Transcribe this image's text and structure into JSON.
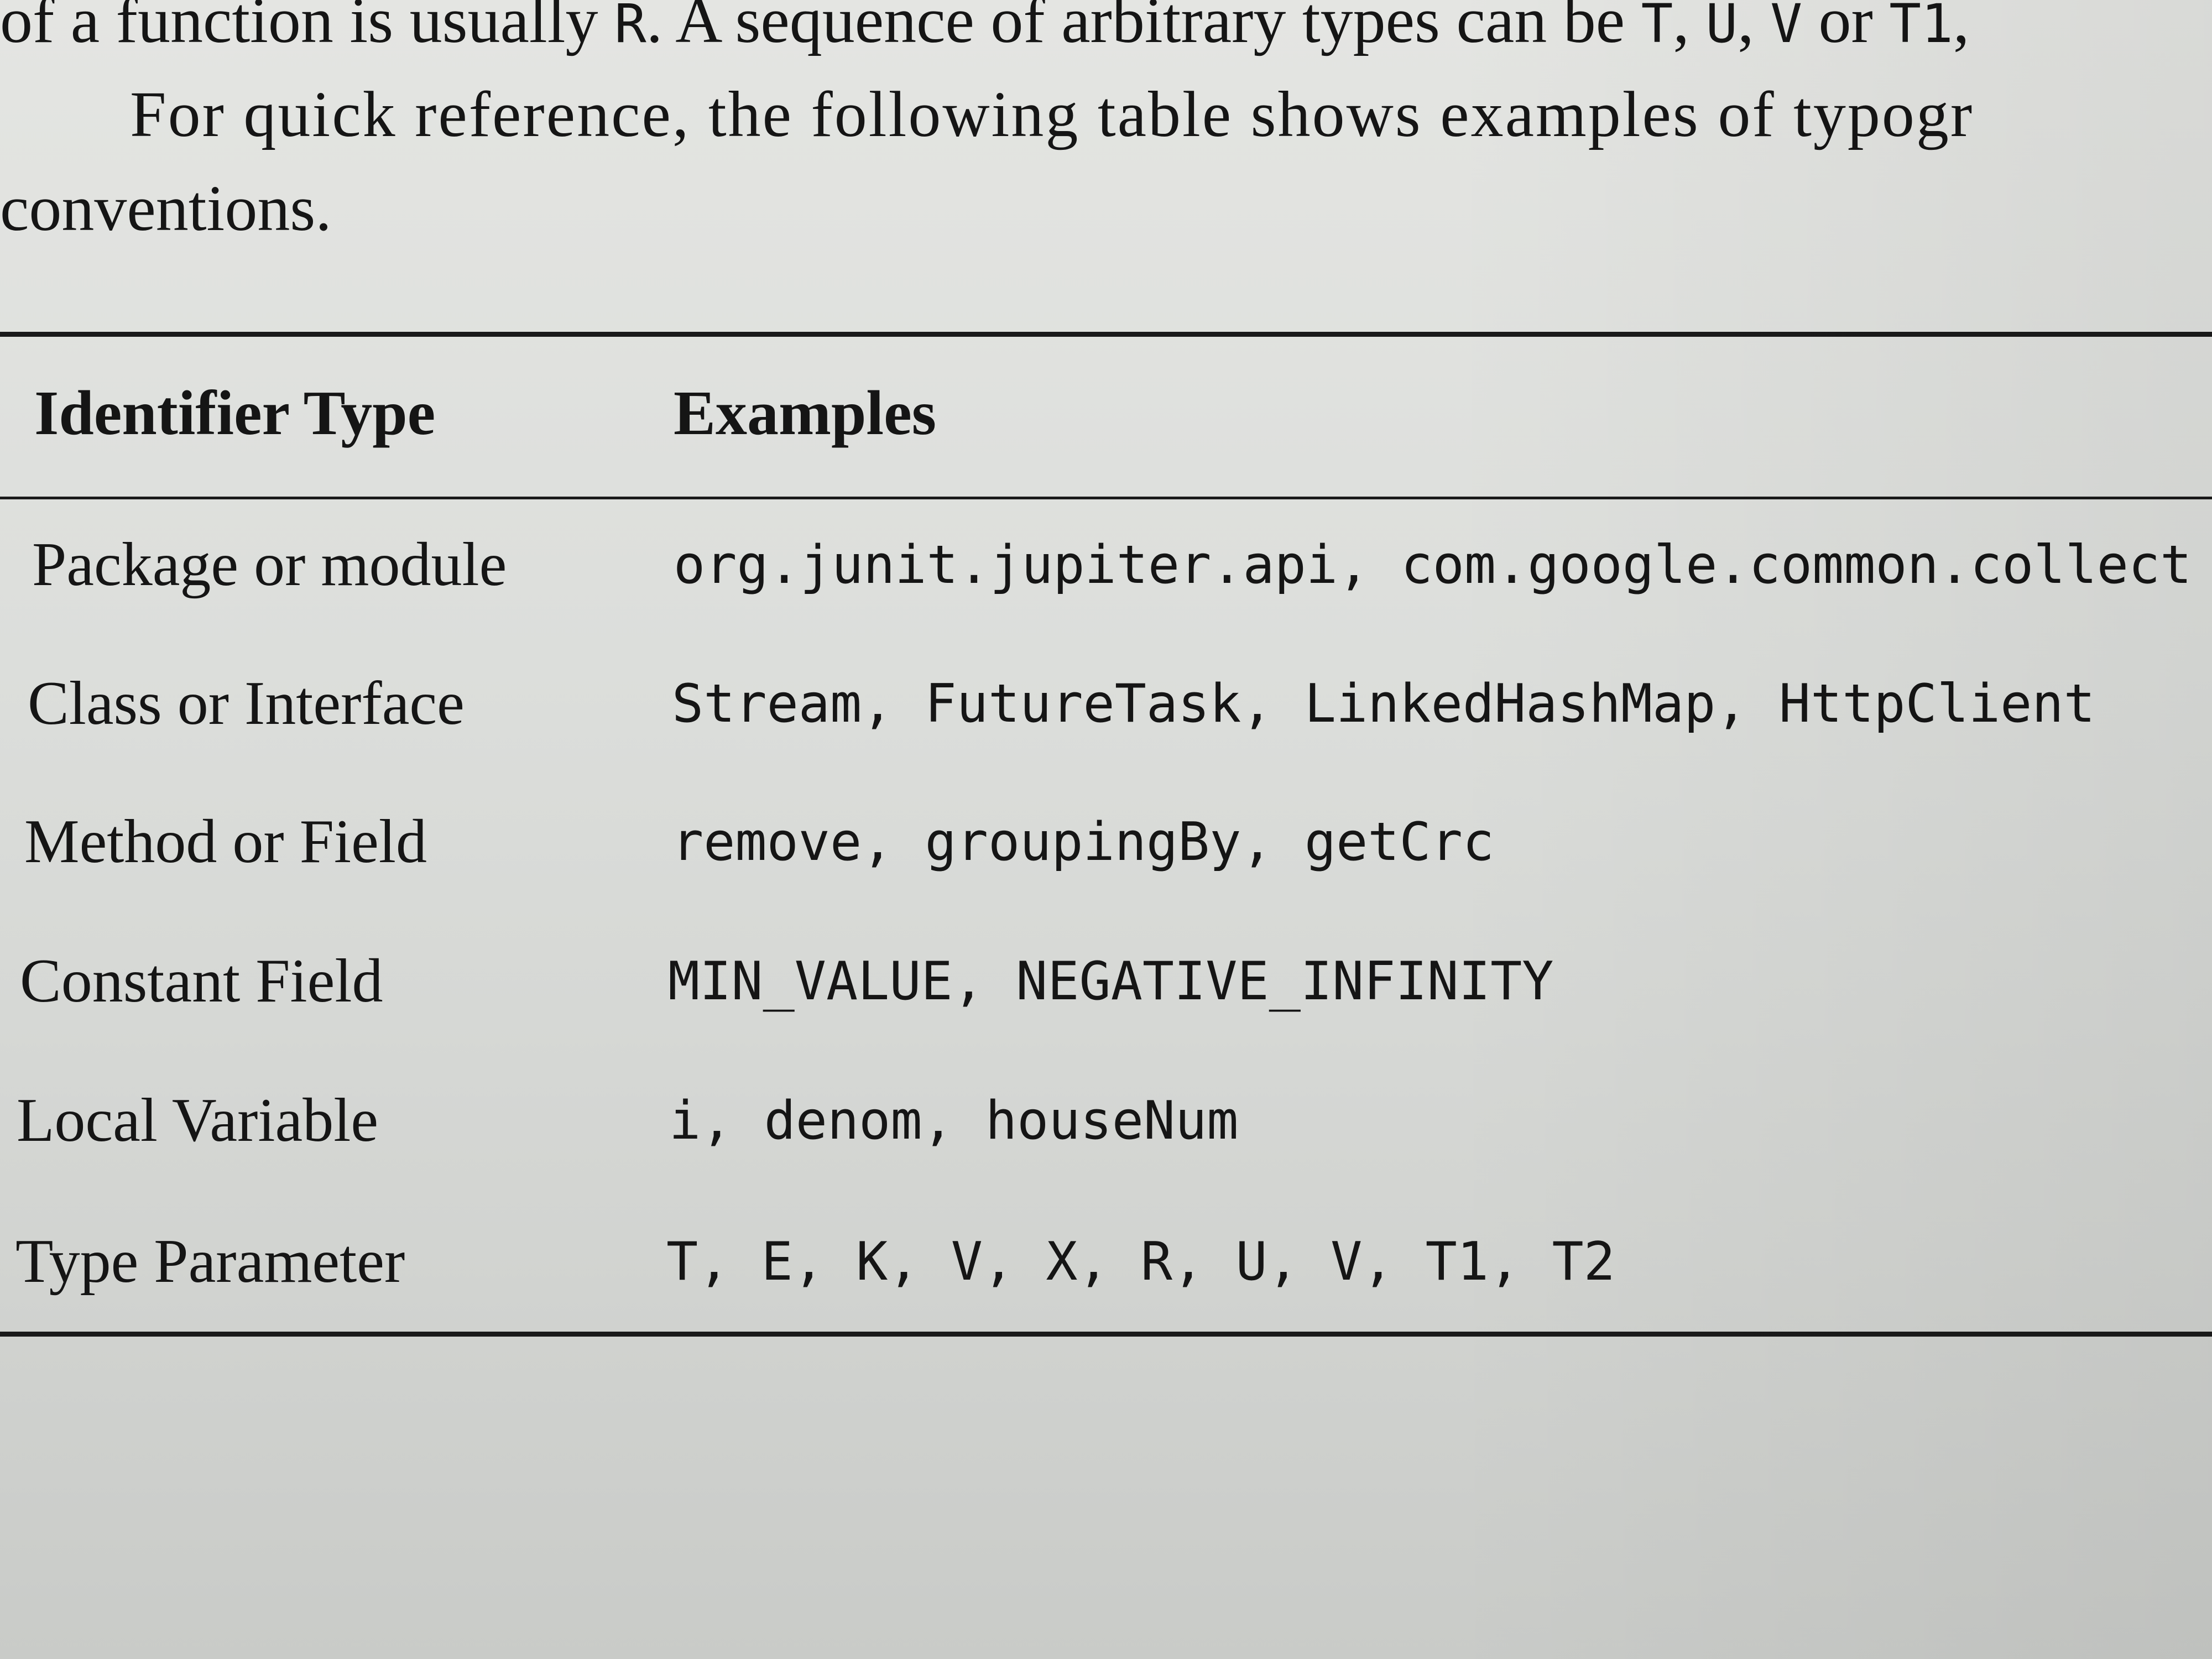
{
  "intro": {
    "line1_prefix": "of a function is usually ",
    "line1_code1": "R",
    "line1_middle": ". A sequence of arbitrary types can be ",
    "line1_code2": "T",
    "line1_sep1": ", ",
    "line1_code3": "U",
    "line1_sep2": ", ",
    "line1_code4": "V",
    "line1_or": " or ",
    "line1_code5": "T1",
    "line1_end": ",",
    "line2": "For quick reference, the following table shows examples of typogr",
    "line3": "conventions."
  },
  "table": {
    "header_type": "Identifier Type",
    "header_examples": "Examples",
    "rows": [
      {
        "type": "Package or module",
        "examples": "org.junit.jupiter.api, com.google.common.collect"
      },
      {
        "type": "Class or Interface",
        "examples": "Stream, FutureTask, LinkedHashMap, HttpClient"
      },
      {
        "type": "Method or Field",
        "examples": "remove, groupingBy, getCrc"
      },
      {
        "type": "Constant Field",
        "examples": "MIN_VALUE, NEGATIVE_INFINITY"
      },
      {
        "type": "Local Variable",
        "examples": "i, denom, houseNum"
      },
      {
        "type": "Type Parameter",
        "examples": "T, E, K, V, X, R, U, V, T1, T2"
      }
    ]
  }
}
